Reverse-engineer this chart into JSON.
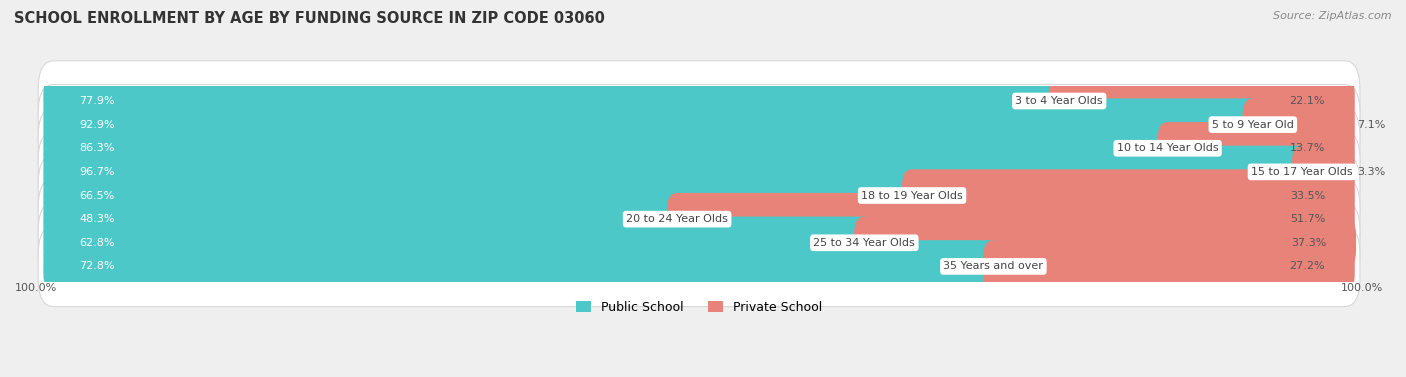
{
  "title": "SCHOOL ENROLLMENT BY AGE BY FUNDING SOURCE IN ZIP CODE 03060",
  "source": "Source: ZipAtlas.com",
  "categories": [
    "3 to 4 Year Olds",
    "5 to 9 Year Old",
    "10 to 14 Year Olds",
    "15 to 17 Year Olds",
    "18 to 19 Year Olds",
    "20 to 24 Year Olds",
    "25 to 34 Year Olds",
    "35 Years and over"
  ],
  "public_values": [
    77.9,
    92.9,
    86.3,
    96.7,
    66.5,
    48.3,
    62.8,
    72.8
  ],
  "private_values": [
    22.1,
    7.1,
    13.7,
    3.3,
    33.5,
    51.7,
    37.3,
    27.2
  ],
  "public_color": "#4DC8C8",
  "private_color": "#E8837A",
  "public_label": "Public School",
  "private_label": "Private School",
  "background_color": "#efefef",
  "row_bg_color": "#ffffff",
  "row_edge_color": "#d8d8d8",
  "pub_value_color": "#ffffff",
  "priv_value_color": "#555555",
  "center_label_color": "#444444",
  "title_color": "#333333",
  "source_color": "#888888",
  "title_fontsize": 10.5,
  "source_fontsize": 8,
  "cat_label_fontsize": 8,
  "value_fontsize": 8,
  "legend_fontsize": 9,
  "footer_fontsize": 8,
  "bar_height": 0.62,
  "total_width": 100,
  "left_label": "100.0%",
  "right_label": "100.0%"
}
